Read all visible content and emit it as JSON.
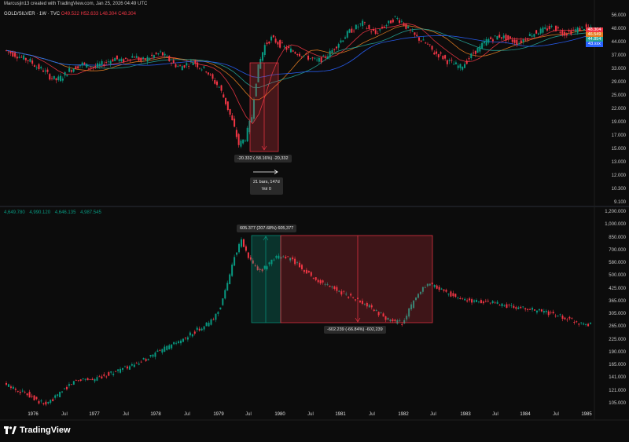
{
  "header": {
    "caption": "Marcusjin13 created with TradingView.com, Jan 25, 2026 04:49 UTC",
    "symbol": "GOLD/SILVER · 1W · TVC",
    "ohlc": {
      "o": "O49.522",
      "h": "H52.633",
      "l": "L48.304",
      "c": "C48.304"
    }
  },
  "pane2_ohlc": [
    "4,649.780",
    "4,990.120",
    "4,646.135",
    "4,987.545"
  ],
  "brand": "TradingView",
  "measure_top": {
    "change": "-20.332 (-58.16%) -20,332",
    "bars": "21 bars, 147d",
    "vol": "Vol 0"
  },
  "measure_bottom": {
    "up": "605.377 (207.68%) 605,377",
    "down": "-602.239 (-66.84%) -602,239"
  },
  "price_tags": [
    {
      "text": "48.304",
      "color": "#f23645"
    },
    {
      "text": "46.549",
      "color": "#e67e22"
    },
    {
      "text": "44.854",
      "color": "#26a69a"
    },
    {
      "text": "43.xxx",
      "color": "#2962ff"
    }
  ],
  "chart_data": [
    {
      "type": "candlestick",
      "title": "GOLD/SILVER · 1W · TVC",
      "scale": "log",
      "ylim": [
        9.1,
        56.0
      ],
      "y_ticks": [
        "56.000",
        "48.000",
        "44.000",
        "37.000",
        "33.000",
        "29.000",
        "25.000",
        "22.000",
        "19.000",
        "17.000",
        "15.000",
        "13.000",
        "12.000",
        "10.300",
        "9.100"
      ],
      "x_ticks": [
        "1976",
        "Jul",
        "1977",
        "Jul",
        "1978",
        "Jul",
        "1979",
        "Jul",
        "1980",
        "Jul",
        "1981",
        "Jul",
        "1982",
        "Jul",
        "1983",
        "Jul",
        "1984",
        "Jul",
        "1985"
      ],
      "series": [
        {
          "name": "price",
          "y": [
            40,
            39,
            38,
            37,
            36,
            34,
            33,
            31,
            30,
            31,
            33,
            34,
            35,
            34,
            34,
            35,
            36,
            37,
            36,
            37,
            38,
            36,
            37,
            38,
            39,
            37,
            35,
            34,
            35,
            36,
            34,
            33,
            30,
            28,
            24,
            20,
            16,
            17,
            21,
            34,
            42,
            45,
            43,
            41,
            40,
            39,
            38,
            37,
            36,
            37,
            39,
            42,
            45,
            48,
            50,
            52,
            49,
            47,
            50,
            52,
            55,
            53,
            49,
            46,
            44,
            42,
            39,
            38,
            36,
            35,
            34,
            36,
            39,
            41,
            44,
            45,
            46,
            45,
            44,
            43,
            45,
            47,
            48,
            49,
            50,
            49,
            47,
            48,
            49,
            50,
            49
          ]
        }
      ]
    },
    {
      "type": "candlestick",
      "scale": "log",
      "ylim": [
        105,
        1200
      ],
      "y_ticks": [
        "1,200.000",
        "1,000.000",
        "850.000",
        "700.000",
        "580.000",
        "500.000",
        "425.000",
        "365.000",
        "305.000",
        "265.000",
        "225.000",
        "190.000",
        "165.000",
        "141.000",
        "121.000",
        "105.000"
      ],
      "x_ticks": [
        "1976",
        "Jul",
        "1977",
        "Jul",
        "1978",
        "Jul",
        "1979",
        "Jul",
        "1980",
        "Jul",
        "1981",
        "Jul",
        "1982",
        "Jul",
        "1983",
        "Jul",
        "1984",
        "Jul",
        "1985"
      ],
      "series": [
        {
          "name": "price",
          "y": [
            140,
            135,
            130,
            125,
            120,
            112,
            108,
            115,
            125,
            135,
            145,
            150,
            150,
            148,
            155,
            160,
            165,
            170,
            175,
            180,
            190,
            200,
            210,
            220,
            230,
            240,
            250,
            270,
            285,
            300,
            320,
            380,
            500,
            720,
            870,
            700,
            620,
            600,
            650,
            700,
            720,
            690,
            650,
            600,
            560,
            520,
            500,
            480,
            460,
            440,
            420,
            400,
            380,
            360,
            340,
            320,
            310,
            305,
            360,
            420,
            470,
            500,
            480,
            460,
            440,
            420,
            410,
            405,
            400,
            400,
            395,
            390,
            380,
            375,
            370,
            365,
            360,
            355,
            345,
            340,
            330,
            320,
            310,
            305,
            300
          ]
        }
      ]
    }
  ]
}
